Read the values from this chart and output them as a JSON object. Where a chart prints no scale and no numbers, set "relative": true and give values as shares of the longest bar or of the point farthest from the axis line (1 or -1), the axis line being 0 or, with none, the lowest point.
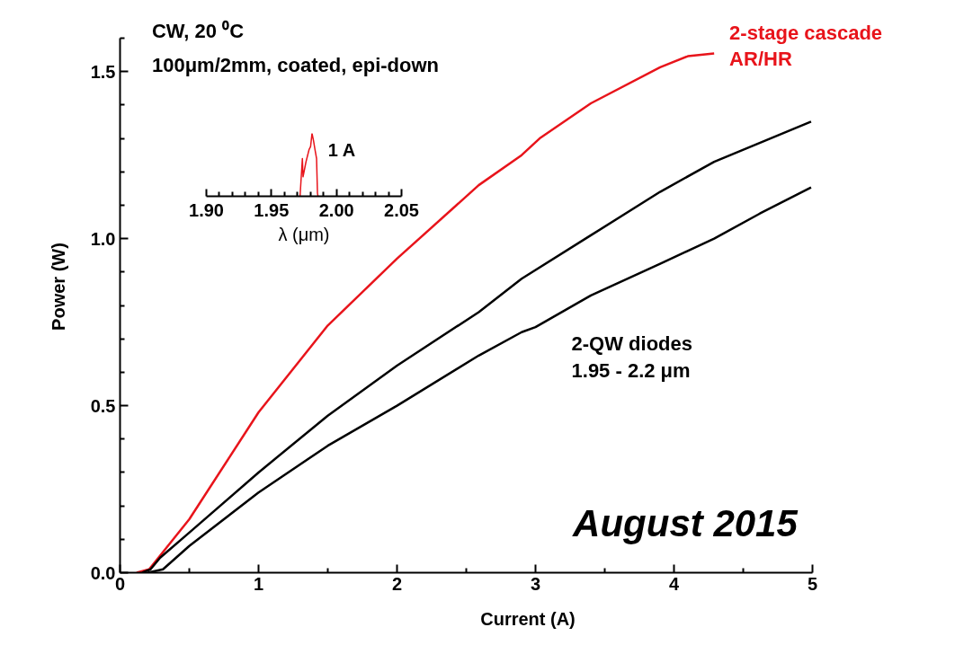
{
  "chart_data": [
    {
      "type": "line",
      "xlabel": "Current (A)",
      "ylabel": "Power (W)",
      "xlim": [
        0,
        5
      ],
      "ylim": [
        0,
        1.6
      ],
      "xticks": [
        0,
        {
          "value": 0.5,
          "label": null
        },
        1,
        {
          "value": 1.5,
          "label": null
        },
        2,
        {
          "value": 2.5,
          "label": null
        },
        3,
        {
          "value": 3.5,
          "label": null
        },
        4,
        {
          "value": 4.5,
          "label": null
        },
        5
      ],
      "yticks": [
        {
          "value": 0,
          "label": "0.0"
        },
        {
          "value": 0.1,
          "label": null
        },
        {
          "value": 0.2,
          "label": null
        },
        {
          "value": 0.3,
          "label": null
        },
        {
          "value": 0.4,
          "label": null
        },
        {
          "value": 0.5,
          "label": "0.5"
        },
        {
          "value": 0.6,
          "label": null
        },
        {
          "value": 0.7,
          "label": null
        },
        {
          "value": 0.8,
          "label": null
        },
        {
          "value": 0.9,
          "label": null
        },
        {
          "value": 1,
          "label": "1.0"
        },
        {
          "value": 1.1,
          "label": null
        },
        {
          "value": 1.2,
          "label": null
        },
        {
          "value": 1.3,
          "label": null
        },
        {
          "value": 1.4,
          "label": null
        },
        {
          "value": 1.5,
          "label": "1.5"
        },
        {
          "value": 1.6,
          "label": null
        }
      ],
      "series": [
        {
          "name": "2-stage cascade\nAR/HR",
          "color": "#e8141b",
          "x": [
            0.12,
            0.21,
            0.5,
            1.0,
            1.5,
            2.0,
            2.59,
            2.9,
            3.03,
            3.4,
            3.9,
            4.1,
            4.29
          ],
          "values": [
            0,
            0.01,
            0.16,
            0.48,
            0.74,
            0.94,
            1.16,
            1.25,
            1.3,
            1.405,
            1.513,
            1.546,
            1.554
          ]
        },
        {
          "color": "#000000",
          "x": [
            0.16,
            0.22,
            0.29,
            0.5,
            1.0,
            1.5,
            2.0,
            2.59,
            2.9,
            3.4,
            3.9,
            4.29,
            4.99
          ],
          "values": [
            0,
            0.01,
            0.045,
            0.12,
            0.3,
            0.47,
            0.62,
            0.78,
            0.88,
            1.01,
            1.14,
            1.23,
            1.35
          ]
        },
        {
          "color": "#000000",
          "x": [
            0.2,
            0.31,
            0.5,
            1.0,
            1.5,
            2.0,
            2.59,
            2.9,
            3.0,
            3.4,
            3.9,
            4.29,
            4.62,
            4.99
          ],
          "values": [
            0,
            0.01,
            0.08,
            0.24,
            0.38,
            0.5,
            0.65,
            0.72,
            0.735,
            0.83,
            0.925,
            1.0,
            1.075,
            1.153
          ]
        }
      ],
      "annotations": [
        "CW, 20 ⁰C",
        "100μm/2mm, coated, epi-down",
        "2-QW diodes\n1.95 - 2.2 μm",
        "August 2015"
      ]
    },
    {
      "type": "line",
      "relative": true,
      "xlabel": "λ (μm)",
      "xlim": [
        1.9,
        2.05
      ],
      "tick_labels": "x",
      "xticks": [
        {
          "value": 1.9,
          "label": "1.90"
        },
        {
          "value": 1.91,
          "label": null
        },
        {
          "value": 1.92,
          "label": null
        },
        {
          "value": 1.93,
          "label": null
        },
        {
          "value": 1.94,
          "label": null
        },
        {
          "value": 1.95,
          "label": "1.95"
        },
        {
          "value": 1.96,
          "label": null
        },
        {
          "value": 1.97,
          "label": null
        },
        {
          "value": 1.98,
          "label": null
        },
        {
          "value": 1.99,
          "label": null
        },
        {
          "value": 2.0,
          "label": "2.00"
        },
        {
          "value": 2.01,
          "label": null
        },
        {
          "value": 2.02,
          "label": null
        },
        {
          "value": 2.03,
          "label": null
        },
        {
          "value": 2.04,
          "label": null
        },
        {
          "value": 2.05,
          "label": "2.05"
        }
      ],
      "series": [
        {
          "color": "#e8141b",
          "x": [
            1.972,
            1.9738,
            1.9743,
            1.9766,
            1.9789,
            1.9801,
            1.9812,
            1.9824,
            1.9835,
            1.9847,
            1.9854,
            1.9858
          ],
          "values": [
            0,
            0.6,
            0.31,
            0.55,
            0.74,
            0.79,
            1.0,
            0.88,
            0.74,
            0.6,
            0.05,
            0
          ]
        }
      ],
      "annotations": [
        "1 A"
      ]
    }
  ]
}
